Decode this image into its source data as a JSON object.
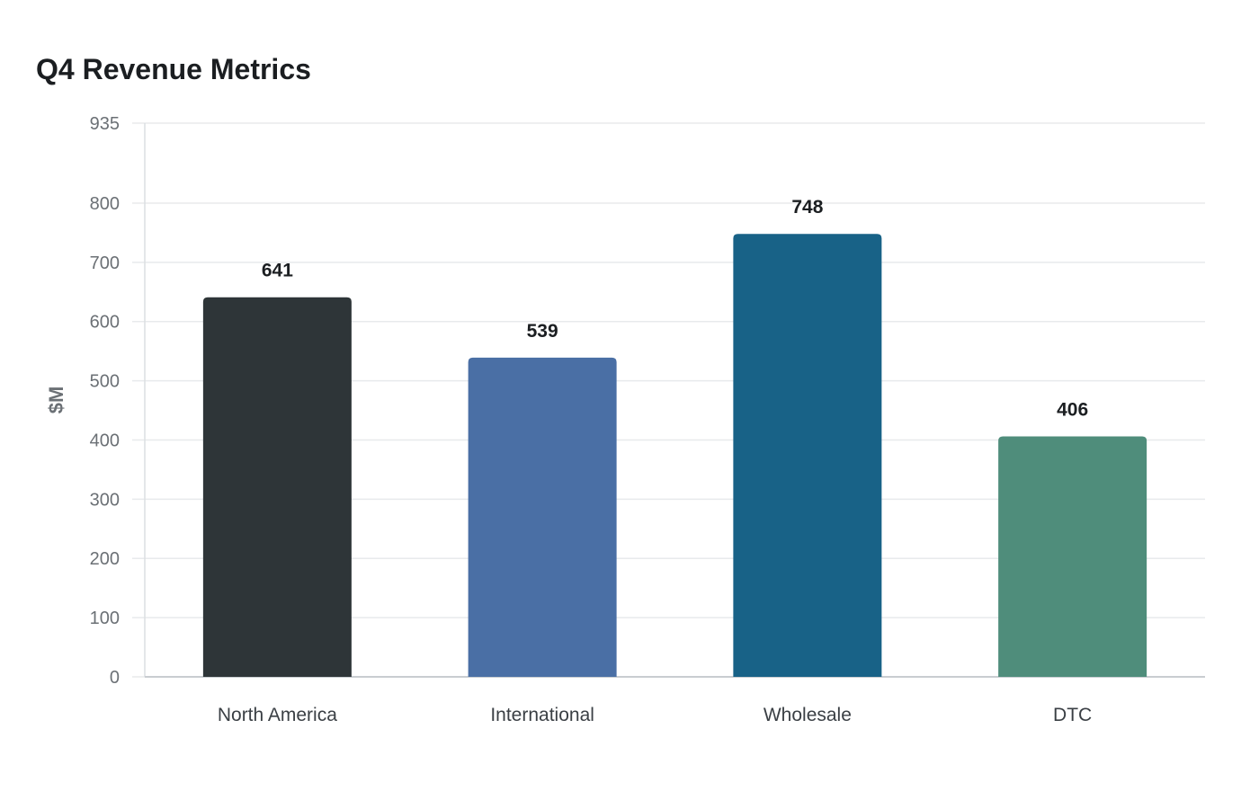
{
  "chart_data": {
    "type": "bar",
    "title": "Q4 Revenue Metrics",
    "xlabel": "",
    "ylabel": "$M",
    "categories": [
      "North America",
      "International",
      "Wholesale",
      "DTC"
    ],
    "values": [
      641,
      539,
      748,
      406
    ],
    "value_labels": [
      "641",
      "539",
      "748",
      "406"
    ],
    "colors": [
      "#2e3538",
      "#4a6fa5",
      "#186287",
      "#4f8d7b"
    ],
    "ylim": [
      0,
      935
    ],
    "yticks": [
      0,
      100,
      200,
      300,
      400,
      500,
      600,
      700,
      800,
      935
    ],
    "ytick_labels": [
      "0",
      "100",
      "200",
      "300",
      "400",
      "500",
      "600",
      "700",
      "800",
      "935"
    ],
    "grid": true,
    "legend": "none"
  }
}
